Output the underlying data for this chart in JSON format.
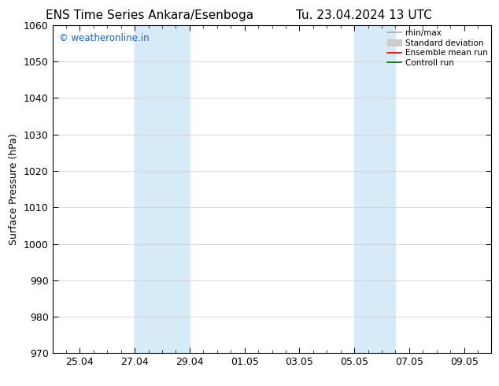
{
  "title": "ENS Time Series Ankara/Esenboga",
  "title2": "Tu. 23.04.2024 13 UTC",
  "ylabel": "Surface Pressure (hPa)",
  "ylim": [
    970,
    1060
  ],
  "yticks": [
    970,
    980,
    990,
    1000,
    1010,
    1020,
    1030,
    1040,
    1050,
    1060
  ],
  "xtick_labels": [
    "25.04",
    "27.04",
    "29.04",
    "01.05",
    "03.05",
    "05.05",
    "07.05",
    "09.05"
  ],
  "xtick_positions": [
    1,
    3,
    5,
    7,
    9,
    11,
    13,
    15
  ],
  "x_min": 0,
  "x_max": 16,
  "shaded_bands": [
    {
      "x_start": 3,
      "x_end": 5
    },
    {
      "x_start": 11,
      "x_end": 12.5
    }
  ],
  "shaded_color": "#d6eaf8",
  "background_color": "#ffffff",
  "watermark_text": "© weatheronline.in",
  "watermark_color": "#1a5fba",
  "legend_items": [
    {
      "label": "min/max",
      "color": "#aaaaaa",
      "lw": 1.2
    },
    {
      "label": "Standard deviation",
      "color": "#cccccc",
      "lw": 5
    },
    {
      "label": "Ensemble mean run",
      "color": "#cc0000",
      "lw": 1.2
    },
    {
      "label": "Controll run",
      "color": "#006400",
      "lw": 1.2
    }
  ],
  "grid_color": "#cccccc",
  "axis_linewidth": 0.8,
  "font_size": 9,
  "title_font_size": 11
}
